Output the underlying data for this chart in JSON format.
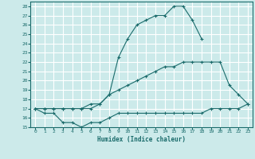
{
  "title": "",
  "xlabel": "Humidex (Indice chaleur)",
  "bg_color": "#cceaea",
  "grid_color": "#ffffff",
  "line_color": "#1a6b6b",
  "xlim": [
    -0.5,
    23.5
  ],
  "ylim": [
    15,
    28.5
  ],
  "xticks": [
    0,
    1,
    2,
    3,
    4,
    5,
    6,
    7,
    8,
    9,
    10,
    11,
    12,
    13,
    14,
    15,
    16,
    17,
    18,
    19,
    20,
    21,
    22,
    23
  ],
  "yticks": [
    15,
    16,
    17,
    18,
    19,
    20,
    21,
    22,
    23,
    24,
    25,
    26,
    27,
    28
  ],
  "curve_top_x": [
    0,
    1,
    2,
    3,
    4,
    5,
    6,
    7,
    8,
    9,
    10,
    11,
    12,
    13,
    14,
    15,
    16,
    17,
    18
  ],
  "curve_top_y": [
    17.0,
    17.0,
    17.0,
    17.0,
    17.0,
    17.0,
    17.0,
    17.5,
    18.5,
    22.5,
    24.5,
    26.0,
    26.5,
    27.0,
    27.0,
    28.0,
    28.0,
    26.5,
    24.5
  ],
  "curve_mid_x": [
    0,
    1,
    2,
    3,
    4,
    5,
    6,
    7,
    8,
    9,
    10,
    11,
    12,
    13,
    14,
    15,
    16,
    17,
    18,
    19,
    20,
    21,
    22,
    23
  ],
  "curve_mid_y": [
    17.0,
    17.0,
    17.0,
    17.0,
    17.0,
    17.0,
    17.5,
    17.5,
    18.5,
    19.0,
    19.5,
    20.0,
    20.5,
    21.0,
    21.5,
    21.5,
    22.0,
    22.0,
    22.0,
    22.0,
    22.0,
    19.5,
    18.5,
    17.5
  ],
  "curve_bot_x": [
    0,
    1,
    2,
    3,
    4,
    5,
    6,
    7,
    8,
    9,
    10,
    11,
    12,
    13,
    14,
    15,
    16,
    17,
    18,
    19,
    20,
    21,
    22,
    23
  ],
  "curve_bot_y": [
    17.0,
    16.5,
    16.5,
    15.5,
    15.5,
    15.0,
    15.5,
    15.5,
    16.0,
    16.5,
    16.5,
    16.5,
    16.5,
    16.5,
    16.5,
    16.5,
    16.5,
    16.5,
    16.5,
    17.0,
    17.0,
    17.0,
    17.0,
    17.5
  ]
}
